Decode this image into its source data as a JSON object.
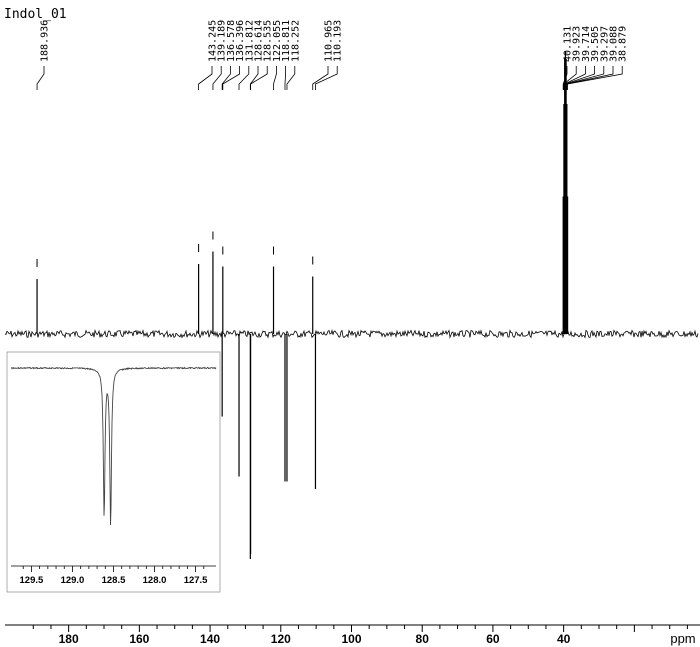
{
  "chart_data": [
    {
      "type": "line",
      "title": "Indol_01",
      "xlabel": "ppm",
      "ylabel": "",
      "xlim": [
        198,
        2
      ],
      "x_reversed": true,
      "xticks": [
        180,
        160,
        140,
        120,
        100,
        80,
        60,
        40
      ],
      "grid": false,
      "peak_labels": [
        "188.936",
        "143.245",
        "139.189",
        "136.578",
        "136.396",
        "131.812",
        "128.614",
        "128.535",
        "122.055",
        "118.811",
        "118.252",
        "110.965",
        "110.193",
        "40.131",
        "39.923",
        "39.714",
        "39.505",
        "39.297",
        "39.088",
        "38.879"
      ],
      "series": [
        {
          "peaks": [
            {
              "x": 188.936,
              "y": 0.22
            },
            {
              "x": 143.245,
              "y": 0.28
            },
            {
              "x": 139.189,
              "y": 0.33
            },
            {
              "x": 136.578,
              "y": -0.33
            },
            {
              "x": 136.396,
              "y": 0.27
            },
            {
              "x": 131.812,
              "y": -0.57
            },
            {
              "x": 128.614,
              "y": -0.9
            },
            {
              "x": 128.535,
              "y": -0.88
            },
            {
              "x": 122.055,
              "y": 0.27
            },
            {
              "x": 118.811,
              "y": -0.59
            },
            {
              "x": 118.252,
              "y": -0.59
            },
            {
              "x": 110.965,
              "y": 0.23
            },
            {
              "x": 110.193,
              "y": -0.62
            },
            {
              "x": 40.131,
              "y": 0.55
            },
            {
              "x": 39.923,
              "y": 0.92
            },
            {
              "x": 39.714,
              "y": 1.1
            },
            {
              "x": 39.505,
              "y": 1.13
            },
            {
              "x": 39.297,
              "y": 1.1
            },
            {
              "x": 39.088,
              "y": 0.92
            },
            {
              "x": 38.879,
              "y": 0.55
            }
          ]
        }
      ]
    },
    {
      "type": "line",
      "title": "",
      "xlabel": "",
      "xlim": [
        129.7,
        127.3
      ],
      "x_reversed": true,
      "xticks": [
        129.5,
        129.0,
        128.5,
        128.0,
        127.5
      ],
      "grid": false,
      "series": [
        {
          "peaks": [
            {
              "x": 128.614,
              "y": -0.92
            },
            {
              "x": 128.535,
              "y": -0.98
            }
          ]
        }
      ]
    }
  ]
}
